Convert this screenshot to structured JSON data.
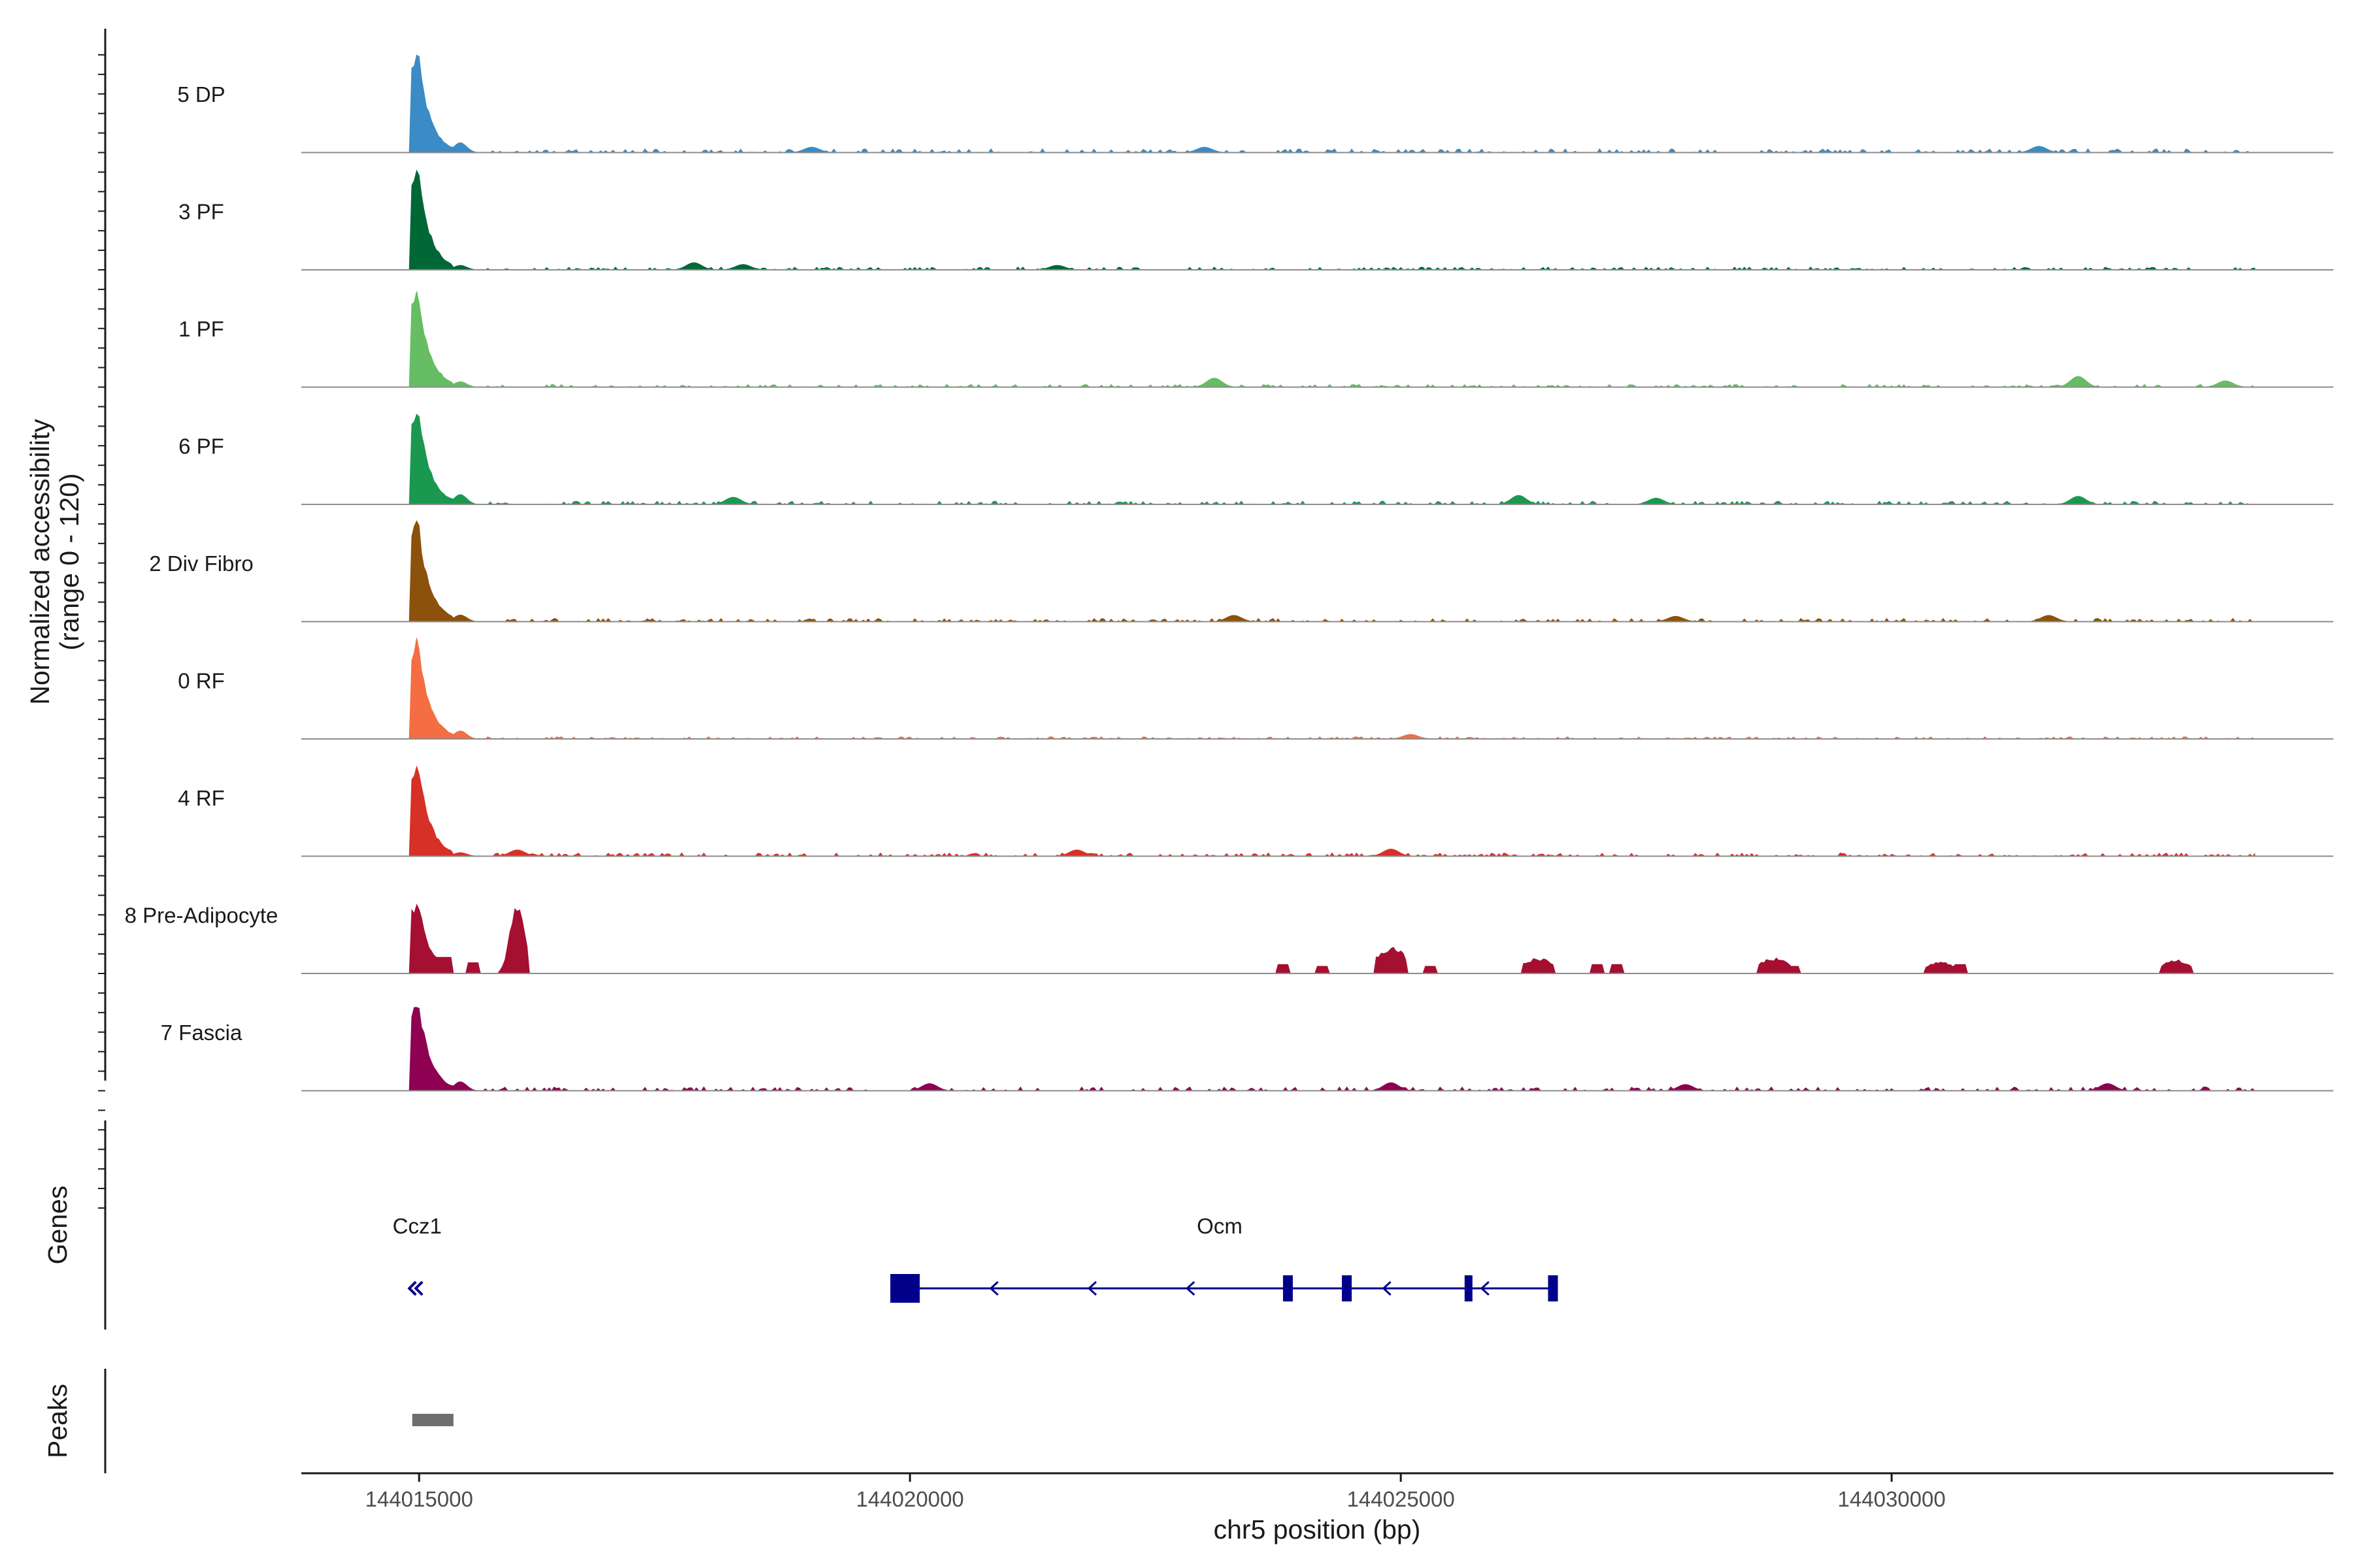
{
  "chart_data": {
    "type": "area",
    "title": "",
    "ylabel": "Normalized accessibility\n(range 0 - 120)",
    "ylabel_lines": [
      "Normalized accessibility",
      "(range 0 - 120)"
    ],
    "ylim": [
      0,
      120
    ],
    "xlabel": "chr5 position (bp)",
    "xlim": [
      144013800,
      144034500
    ],
    "x_ticks": [
      144015000,
      144020000,
      144025000,
      144030000
    ],
    "x_tick_labels": [
      "144015000",
      "144020000",
      "144025000",
      "144030000"
    ],
    "series": [
      {
        "name": "5 DP",
        "color": "#3A8BC6",
        "main_peak": 116,
        "secondary_peak": 22,
        "background_level": 7,
        "extra_peaks": [
          [
            144019000,
            6
          ],
          [
            144023000,
            6
          ],
          [
            144031500,
            7
          ]
        ]
      },
      {
        "name": "3 PF",
        "color": "#006837",
        "main_peak": 118,
        "secondary_peak": 10,
        "background_level": 5,
        "extra_peaks": [
          [
            144017800,
            8
          ],
          [
            144018300,
            6
          ],
          [
            144021500,
            5
          ]
        ]
      },
      {
        "name": "1 PF",
        "color": "#66BD63",
        "main_peak": 112,
        "secondary_peak": 12,
        "background_level": 5,
        "extra_peaks": [
          [
            144023100,
            10
          ],
          [
            144031900,
            12
          ],
          [
            144033400,
            7
          ]
        ]
      },
      {
        "name": "6 PF",
        "color": "#1A9850",
        "main_peak": 110,
        "secondary_peak": 22,
        "background_level": 6,
        "extra_peaks": [
          [
            144018200,
            8
          ],
          [
            144026200,
            10
          ],
          [
            144031900,
            9
          ],
          [
            144027600,
            7
          ]
        ]
      },
      {
        "name": "2 Div Fibro",
        "color": "#8C510A",
        "main_peak": 117,
        "secondary_peak": 15,
        "background_level": 6,
        "extra_peaks": [
          [
            144023300,
            7
          ],
          [
            144027800,
            6
          ],
          [
            144031600,
            7
          ]
        ]
      },
      {
        "name": "0 RF",
        "color": "#F46D43",
        "main_peak": 114,
        "secondary_peak": 18,
        "background_level": 4,
        "extra_peaks": [
          [
            144025100,
            5
          ]
        ]
      },
      {
        "name": "4 RF",
        "color": "#D73027",
        "main_peak": 112,
        "secondary_peak": 8,
        "background_level": 6,
        "extra_peaks": [
          [
            144016000,
            7
          ],
          [
            144021700,
            7
          ],
          [
            144024900,
            8
          ]
        ]
      },
      {
        "name": "8 Pre-Adipocyte",
        "color": "#A50F32",
        "main_peak": 84,
        "secondary_peak": 80,
        "background_level": 0,
        "extra_peaks": [
          [
            144024900,
            28
          ],
          [
            144026400,
            16
          ],
          [
            144028800,
            16
          ],
          [
            144030500,
            12
          ],
          [
            144032900,
            14
          ]
        ]
      },
      {
        "name": "7 Fascia",
        "color": "#8E0152",
        "main_peak": 108,
        "secondary_peak": 20,
        "background_level": 7,
        "extra_peaks": [
          [
            144020200,
            8
          ],
          [
            144024900,
            9
          ],
          [
            144027900,
            7
          ],
          [
            144032200,
            8
          ]
        ]
      }
    ],
    "genes": [
      {
        "name": "Ccz1",
        "start": 144014900,
        "end": 144014960,
        "strand": "-",
        "exons": []
      },
      {
        "name": "Ocm",
        "start": 144019800,
        "end": 144026600,
        "strand": "-",
        "exons": [
          [
            144019800,
            144020100
          ],
          [
            144023800,
            144023900
          ],
          [
            144024400,
            144024500
          ],
          [
            144025650,
            144025720
          ],
          [
            144026500,
            144026600
          ]
        ]
      }
    ],
    "peaks": [
      [
        144014930,
        144015350
      ]
    ],
    "panel_labels": {
      "genes": "Genes",
      "peaks": "Peaks"
    }
  }
}
